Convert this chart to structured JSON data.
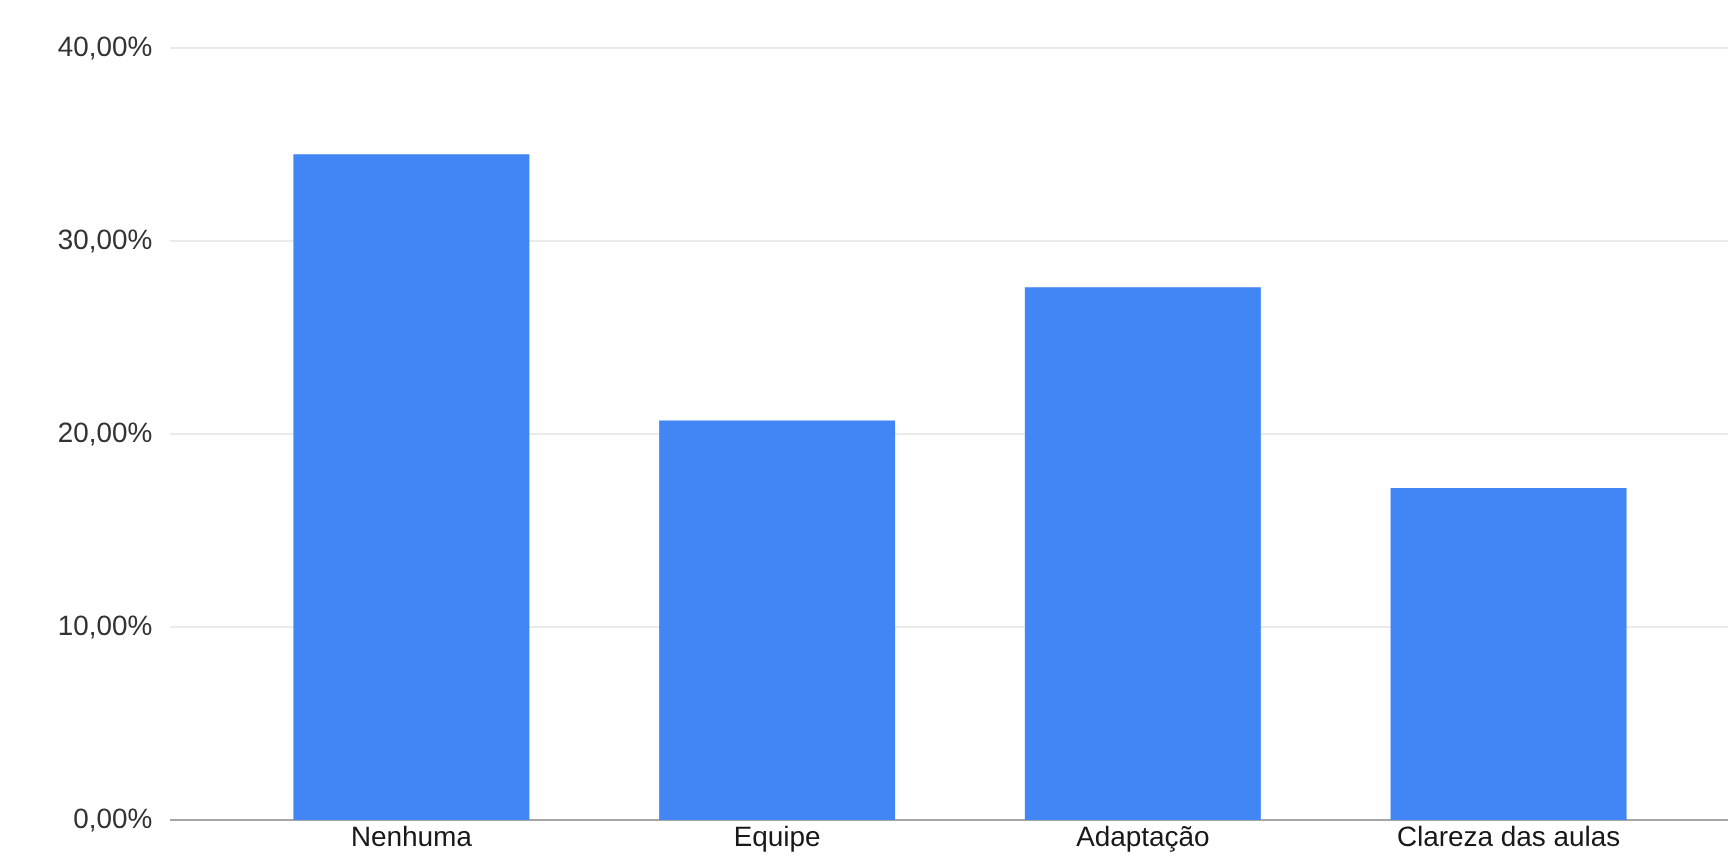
{
  "chart_data": {
    "type": "bar",
    "categories": [
      "Nenhuma",
      "Equipe",
      "Adaptação",
      "Clareza das aulas"
    ],
    "values": [
      34.5,
      20.7,
      27.6,
      17.2
    ],
    "color": "#4285f4",
    "ylim": [
      0,
      40
    ],
    "yticks": [
      {
        "value": 0,
        "label": "0,00%"
      },
      {
        "value": 10,
        "label": "10,00%"
      },
      {
        "value": 20,
        "label": "20,00%"
      },
      {
        "value": 30,
        "label": "30,00%"
      },
      {
        "value": 40,
        "label": "40,00%"
      }
    ],
    "grid": "y"
  }
}
